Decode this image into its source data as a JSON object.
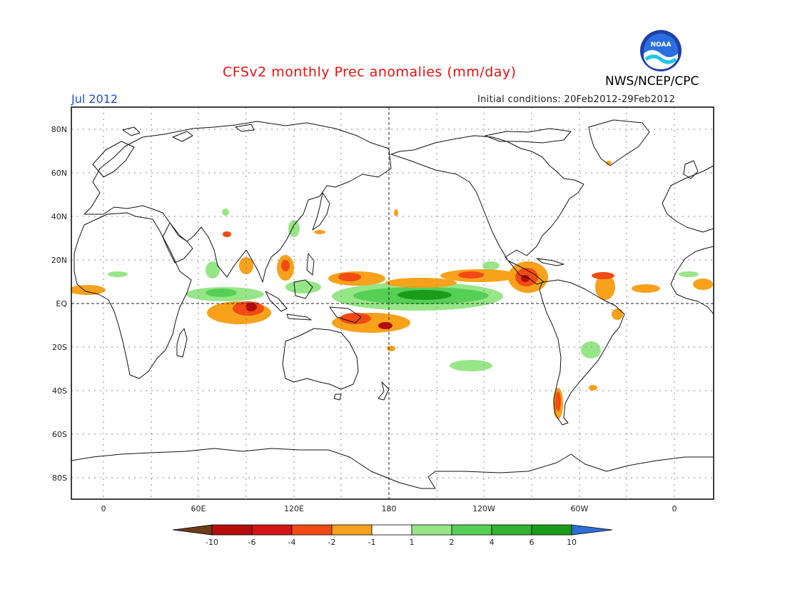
{
  "header": {
    "title": "CFSv2 monthly Prec anomalies (mm/day)",
    "agency": "NWS/NCEP/CPC",
    "logo_text": "NOAA",
    "month": "Jul 2012",
    "initial_conditions": "Initial conditions: 20Feb2012-29Feb2012"
  },
  "map": {
    "lat_labels": [
      "80N",
      "60N",
      "40N",
      "20N",
      "EQ",
      "20S",
      "40S",
      "60S",
      "80S"
    ],
    "lon_labels": [
      "0",
      "60E",
      "120E",
      "180",
      "120W",
      "60W",
      "0"
    ]
  },
  "legend": {
    "labels": [
      "-10",
      "-6",
      "-4",
      "-2",
      "-1",
      "1",
      "2",
      "4",
      "6",
      "10"
    ],
    "colors": [
      "#6e3b1c",
      "#b60c0c",
      "#d21414",
      "#f24a14",
      "#f8a11b",
      "#ffffff",
      "#96e688",
      "#55d055",
      "#33b233",
      "#1a9c1a",
      "#2e6ed6"
    ]
  },
  "colors": {
    "title": "#e8110f",
    "month": "#1f4fd6",
    "dry_orange": "#f8a11b",
    "dry_red": "#f24a14",
    "dry_dark": "#b60c0c",
    "wet_light": "#96e688",
    "wet_mid": "#55d055",
    "wet_dark": "#1a9c1a"
  }
}
